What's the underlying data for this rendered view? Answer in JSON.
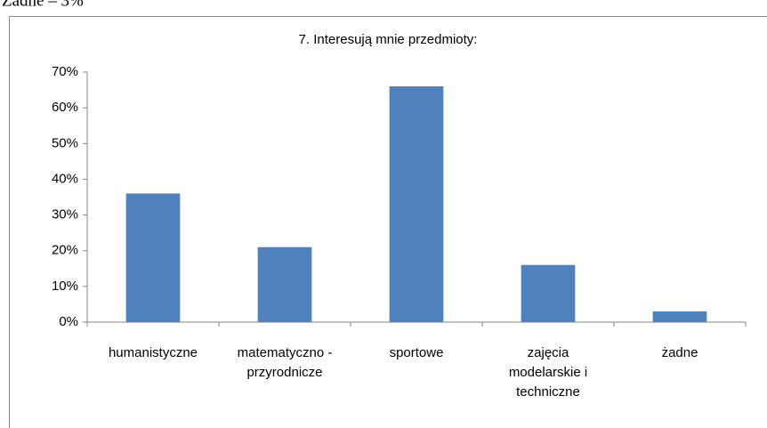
{
  "page_text": "Żadne – 3%",
  "chart_data": {
    "type": "bar",
    "title": "7. Interesują mnie przedmioty:",
    "categories": [
      "humanistyczne",
      "matematyczno - przyrodnicze",
      "sportowe",
      "zajęcia modelarskie i techniczne",
      "żadne"
    ],
    "values": [
      36,
      21,
      66,
      16,
      3
    ],
    "color": "#4f81bd",
    "ylim": [
      0,
      70
    ],
    "yticks": [
      {
        "value": 0,
        "label": "0%"
      },
      {
        "value": 10,
        "label": "10%"
      },
      {
        "value": 20,
        "label": "20%"
      },
      {
        "value": 30,
        "label": "30%"
      },
      {
        "value": 40,
        "label": "40%"
      },
      {
        "value": 50,
        "label": "50%"
      },
      {
        "value": 60,
        "label": "60%"
      },
      {
        "value": 70,
        "label": "70%"
      }
    ],
    "grid": false
  }
}
